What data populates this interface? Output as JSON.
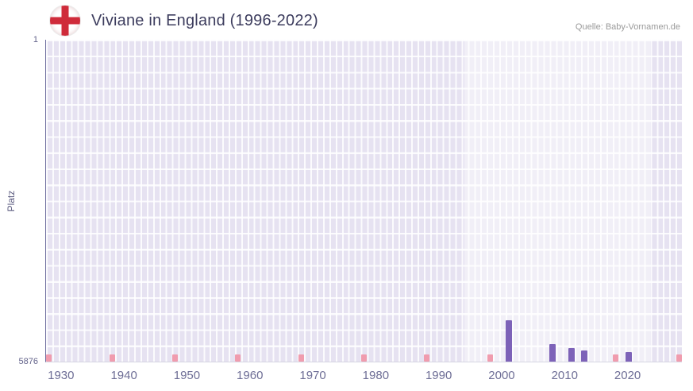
{
  "header": {
    "source": "Quelle: Baby-Vornamen.de"
  },
  "chart_data": {
    "type": "bar",
    "title": "Viviane in England (1996-2022)",
    "ylabel": "Platz",
    "y_axis": {
      "min": 1,
      "max": 5876,
      "top_label": "1",
      "bottom_label": "5876",
      "inverted": true
    },
    "x_axis": {
      "min": 1927.5,
      "max": 2028.5,
      "ticks": [
        1930,
        1940,
        1950,
        1960,
        1970,
        1980,
        1990,
        2000,
        2010,
        2020
      ]
    },
    "plot_band": {
      "from": 1994,
      "to": 2023.5
    },
    "series": [
      {
        "name": "Platz",
        "color": "#7d62b8",
        "points": [
          {
            "year": 2001,
            "rank": 5120
          },
          {
            "year": 2008,
            "rank": 5556
          },
          {
            "year": 2011,
            "rank": 5628
          },
          {
            "year": 2013,
            "rank": 5672
          },
          {
            "year": 2020,
            "rank": 5703
          }
        ]
      }
    ],
    "decade_markers": {
      "color": "#f09cae",
      "years": [
        1928,
        1938,
        1948,
        1958,
        1968,
        1978,
        1988,
        1998,
        2018,
        2028
      ]
    },
    "grid": true,
    "legend": false
  },
  "colors": {
    "plot_background": "#e6e2f1",
    "grid_line": "#ffffff",
    "band": "rgba(255,255,255,0.45)",
    "axis_line": "#6e6e9e",
    "title_text": "#3d3d5e",
    "tick_text": "#6e6e96",
    "flag_red": "#cf2b3a"
  },
  "icons": {
    "flag": "england-flag-icon"
  }
}
